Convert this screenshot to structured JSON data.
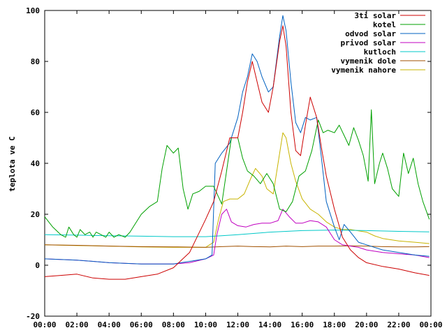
{
  "chart_data": {
    "type": "line",
    "title": "",
    "xlabel": "",
    "ylabel": "teplota ve C",
    "xlim": [
      0,
      24
    ],
    "ylim": [
      -20,
      100
    ],
    "grid": false,
    "legend_position": "top-right",
    "x_tick_labels": [
      "00:00",
      "02:00",
      "04:00",
      "06:00",
      "08:00",
      "10:00",
      "12:00",
      "14:00",
      "16:00",
      "18:00",
      "20:00",
      "22:00",
      "00:00"
    ],
    "y_tick_labels": [
      "-20",
      "0",
      "20",
      "40",
      "60",
      "80",
      "100"
    ],
    "series": [
      {
        "name": "3ti solar",
        "color": "#cc0000",
        "points": [
          [
            0,
            -4.5
          ],
          [
            1,
            -4
          ],
          [
            2,
            -3.5
          ],
          [
            3,
            -5
          ],
          [
            4,
            -5.5
          ],
          [
            5,
            -5.5
          ],
          [
            6,
            -4.5
          ],
          [
            7,
            -3.5
          ],
          [
            8,
            -1
          ],
          [
            9,
            5
          ],
          [
            10,
            18
          ],
          [
            10.5,
            25
          ],
          [
            11,
            37
          ],
          [
            11.5,
            50
          ],
          [
            12,
            50
          ],
          [
            12.3,
            60
          ],
          [
            12.6,
            72
          ],
          [
            12.9,
            80
          ],
          [
            13.2,
            72
          ],
          [
            13.5,
            64
          ],
          [
            13.9,
            60
          ],
          [
            14.2,
            70
          ],
          [
            14.6,
            88
          ],
          [
            14.8,
            94
          ],
          [
            15,
            86
          ],
          [
            15.3,
            60
          ],
          [
            15.6,
            45
          ],
          [
            15.9,
            43
          ],
          [
            16.2,
            55
          ],
          [
            16.5,
            66
          ],
          [
            16.9,
            58
          ],
          [
            17.2,
            46
          ],
          [
            17.5,
            35
          ],
          [
            18,
            22
          ],
          [
            18.5,
            11
          ],
          [
            19,
            6
          ],
          [
            19.5,
            3
          ],
          [
            20,
            1
          ],
          [
            21,
            -0.5
          ],
          [
            22,
            -1.5
          ],
          [
            23,
            -3
          ],
          [
            23.9,
            -4
          ]
        ]
      },
      {
        "name": "kotel",
        "color": "#00a000",
        "points": [
          [
            0,
            19
          ],
          [
            0.5,
            15
          ],
          [
            1,
            12
          ],
          [
            1.3,
            11
          ],
          [
            1.5,
            15
          ],
          [
            1.8,
            12
          ],
          [
            2,
            11
          ],
          [
            2.2,
            14
          ],
          [
            2.5,
            12
          ],
          [
            2.8,
            13
          ],
          [
            3,
            11
          ],
          [
            3.2,
            13
          ],
          [
            3.5,
            12
          ],
          [
            3.8,
            11
          ],
          [
            4,
            13
          ],
          [
            4.3,
            11
          ],
          [
            4.6,
            12
          ],
          [
            5,
            11
          ],
          [
            5.3,
            13
          ],
          [
            5.6,
            16
          ],
          [
            6,
            20
          ],
          [
            6.5,
            23
          ],
          [
            7,
            25
          ],
          [
            7.3,
            38
          ],
          [
            7.6,
            47
          ],
          [
            8,
            44
          ],
          [
            8.3,
            46
          ],
          [
            8.6,
            30
          ],
          [
            8.9,
            22
          ],
          [
            9.2,
            28
          ],
          [
            9.6,
            29
          ],
          [
            10,
            31
          ],
          [
            10.5,
            31
          ],
          [
            11,
            24
          ],
          [
            11.3,
            37
          ],
          [
            11.6,
            50
          ],
          [
            12,
            50
          ],
          [
            12.3,
            42
          ],
          [
            12.6,
            37
          ],
          [
            13,
            35
          ],
          [
            13.4,
            32
          ],
          [
            13.8,
            36
          ],
          [
            14.2,
            32
          ],
          [
            14.6,
            22
          ],
          [
            15,
            21
          ],
          [
            15.4,
            25
          ],
          [
            15.8,
            35
          ],
          [
            16.2,
            37
          ],
          [
            16.6,
            45
          ],
          [
            17,
            57
          ],
          [
            17.3,
            52
          ],
          [
            17.6,
            53
          ],
          [
            18,
            52
          ],
          [
            18.3,
            55
          ],
          [
            18.6,
            51
          ],
          [
            18.9,
            47
          ],
          [
            19.2,
            54
          ],
          [
            19.5,
            49
          ],
          [
            19.8,
            43
          ],
          [
            20.1,
            33
          ],
          [
            20.3,
            61
          ],
          [
            20.5,
            32
          ],
          [
            20.8,
            40
          ],
          [
            21,
            44
          ],
          [
            21.3,
            38
          ],
          [
            21.6,
            30
          ],
          [
            22,
            27
          ],
          [
            22.3,
            44
          ],
          [
            22.6,
            36
          ],
          [
            22.9,
            42
          ],
          [
            23.2,
            32
          ],
          [
            23.5,
            25
          ],
          [
            23.9,
            18
          ]
        ]
      },
      {
        "name": "odvod solar",
        "color": "#0060c0",
        "points": [
          [
            0,
            2.5
          ],
          [
            2,
            2
          ],
          [
            4,
            1
          ],
          [
            6,
            0.5
          ],
          [
            8,
            0.5
          ],
          [
            9,
            1.5
          ],
          [
            10,
            2.5
          ],
          [
            10.4,
            4
          ],
          [
            10.6,
            40
          ],
          [
            11,
            44
          ],
          [
            11.5,
            48
          ],
          [
            12,
            58
          ],
          [
            12.3,
            68
          ],
          [
            12.6,
            74
          ],
          [
            12.9,
            83
          ],
          [
            13.2,
            80
          ],
          [
            13.5,
            74
          ],
          [
            13.9,
            68
          ],
          [
            14.2,
            70
          ],
          [
            14.6,
            90
          ],
          [
            14.8,
            98
          ],
          [
            15,
            92
          ],
          [
            15.3,
            72
          ],
          [
            15.6,
            56
          ],
          [
            15.9,
            52
          ],
          [
            16.2,
            58
          ],
          [
            16.5,
            57
          ],
          [
            16.9,
            58
          ],
          [
            17.2,
            42
          ],
          [
            17.5,
            25
          ],
          [
            18,
            15
          ],
          [
            18.3,
            10
          ],
          [
            18.6,
            16
          ],
          [
            19,
            13
          ],
          [
            19.5,
            9
          ],
          [
            20,
            8
          ],
          [
            21,
            6
          ],
          [
            22,
            5
          ],
          [
            23,
            4
          ],
          [
            23.9,
            3.5
          ]
        ]
      },
      {
        "name": "privod solar",
        "color": "#c000c0",
        "points": [
          [
            0,
            2.5
          ],
          [
            2,
            2
          ],
          [
            4,
            1
          ],
          [
            6,
            0.5
          ],
          [
            8,
            0.5
          ],
          [
            9,
            1
          ],
          [
            10,
            2.5
          ],
          [
            10.5,
            4
          ],
          [
            10.7,
            12
          ],
          [
            11,
            20
          ],
          [
            11.3,
            22
          ],
          [
            11.6,
            17
          ],
          [
            12,
            15.5
          ],
          [
            12.5,
            15
          ],
          [
            13,
            16
          ],
          [
            13.5,
            16.5
          ],
          [
            14,
            16.5
          ],
          [
            14.5,
            17.5
          ],
          [
            14.8,
            22
          ],
          [
            15.2,
            19
          ],
          [
            15.6,
            16.5
          ],
          [
            16,
            16.5
          ],
          [
            16.5,
            17.5
          ],
          [
            17,
            17
          ],
          [
            17.5,
            15
          ],
          [
            18,
            10
          ],
          [
            18.5,
            8
          ],
          [
            19,
            7.5
          ],
          [
            19.5,
            7
          ],
          [
            20,
            6
          ],
          [
            21,
            5
          ],
          [
            22,
            4.5
          ],
          [
            23,
            4
          ],
          [
            23.9,
            3
          ]
        ]
      },
      {
        "name": "kutloch",
        "color": "#00c8c8",
        "points": [
          [
            0,
            12
          ],
          [
            2,
            11.8
          ],
          [
            4,
            11.6
          ],
          [
            6,
            11.4
          ],
          [
            8,
            11.2
          ],
          [
            10,
            11.2
          ],
          [
            11,
            11.6
          ],
          [
            12,
            12
          ],
          [
            14,
            13
          ],
          [
            16,
            13.6
          ],
          [
            18,
            13.8
          ],
          [
            20,
            13.6
          ],
          [
            22,
            13.3
          ],
          [
            23.9,
            13.1
          ]
        ]
      },
      {
        "name": "vymenik dole",
        "color": "#a05000",
        "points": [
          [
            0,
            8
          ],
          [
            2,
            7.8
          ],
          [
            4,
            7.5
          ],
          [
            6,
            7.3
          ],
          [
            8,
            7.2
          ],
          [
            10,
            7
          ],
          [
            11,
            7.3
          ],
          [
            12,
            7.5
          ],
          [
            13,
            7.3
          ],
          [
            14,
            7.2
          ],
          [
            15,
            7.5
          ],
          [
            16,
            7.3
          ],
          [
            17,
            7.5
          ],
          [
            18,
            7.5
          ],
          [
            19,
            7.6
          ],
          [
            20,
            7.5
          ],
          [
            21,
            7.3
          ],
          [
            22,
            7.2
          ],
          [
            23,
            7.2
          ],
          [
            23.9,
            7.3
          ]
        ]
      },
      {
        "name": "vymenik nahore",
        "color": "#c8b400",
        "points": [
          [
            0,
            8
          ],
          [
            2,
            7.7
          ],
          [
            4,
            7.5
          ],
          [
            6,
            7.2
          ],
          [
            8,
            7
          ],
          [
            10,
            7
          ],
          [
            10.5,
            9
          ],
          [
            10.8,
            18
          ],
          [
            11.1,
            25
          ],
          [
            11.5,
            26
          ],
          [
            12,
            26
          ],
          [
            12.4,
            28
          ],
          [
            12.8,
            34
          ],
          [
            13.1,
            38
          ],
          [
            13.5,
            35
          ],
          [
            13.8,
            30
          ],
          [
            14.2,
            28
          ],
          [
            14.5,
            40
          ],
          [
            14.8,
            52
          ],
          [
            15,
            50
          ],
          [
            15.3,
            40
          ],
          [
            15.6,
            33
          ],
          [
            16,
            26
          ],
          [
            16.5,
            22
          ],
          [
            17,
            20
          ],
          [
            17.5,
            17
          ],
          [
            18,
            15
          ],
          [
            18.5,
            14
          ],
          [
            19,
            14
          ],
          [
            19.5,
            13.5
          ],
          [
            20,
            13
          ],
          [
            20.5,
            11.5
          ],
          [
            21,
            10.5
          ],
          [
            22,
            9.5
          ],
          [
            23,
            9
          ],
          [
            23.9,
            8.5
          ]
        ]
      }
    ]
  }
}
